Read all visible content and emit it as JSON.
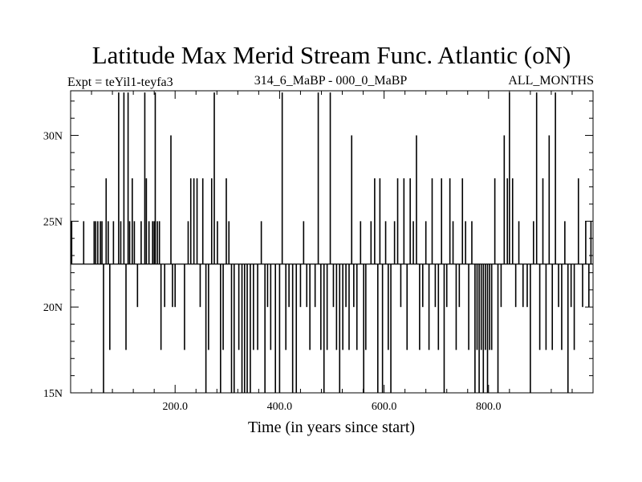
{
  "chart_data": {
    "type": "line",
    "title": "Latitude Max Merid Stream Func. Atlantic (oN)",
    "subtitle_left": "Expt = teYil1-teyfa3",
    "subtitle_center": "314_6_MaBP - 000_0_MaBP",
    "subtitle_right": "ALL_MONTHS",
    "xlabel": "Time (in years since start)",
    "ylabel": "",
    "xlim": [
      0,
      1000
    ],
    "ylim": [
      15,
      32.6
    ],
    "baseline": 22.5,
    "x_ticks": [
      {
        "value": 200,
        "label": "200.0"
      },
      {
        "value": 400,
        "label": "400.0"
      },
      {
        "value": 600,
        "label": "600.0"
      },
      {
        "value": 800,
        "label": "800.0"
      }
    ],
    "y_ticks": [
      {
        "value": 15,
        "label": "15N"
      },
      {
        "value": 20,
        "label": "20N"
      },
      {
        "value": 25,
        "label": "25N"
      },
      {
        "value": 30,
        "label": "30N"
      }
    ],
    "x_minor_step": 40,
    "y_minor_step": 1,
    "series": [
      {
        "spikes": [
          [
            2,
            25
          ],
          [
            25,
            25
          ],
          [
            45,
            25
          ],
          [
            48,
            25
          ],
          [
            52,
            25
          ],
          [
            57,
            25
          ],
          [
            60,
            25
          ],
          [
            63,
            15
          ],
          [
            68,
            27.5
          ],
          [
            72,
            25
          ],
          [
            75,
            17.5
          ],
          [
            82,
            25
          ],
          [
            92,
            32.5
          ],
          [
            96,
            25
          ],
          [
            99,
            22.5
          ],
          [
            102,
            32.5
          ],
          [
            106,
            17.5
          ],
          [
            110,
            32.5
          ],
          [
            113,
            25
          ],
          [
            118,
            27.5
          ],
          [
            122,
            25
          ],
          [
            128,
            20
          ],
          [
            135,
            25
          ],
          [
            142,
            32.5
          ],
          [
            145,
            27.5
          ],
          [
            150,
            25
          ],
          [
            157,
            25
          ],
          [
            160,
            25
          ],
          [
            162,
            32.5
          ],
          [
            166,
            25
          ],
          [
            170,
            25
          ],
          [
            173,
            17.5
          ],
          [
            180,
            20
          ],
          [
            188,
            22.5
          ],
          [
            192,
            30
          ],
          [
            195,
            20
          ],
          [
            200,
            20
          ],
          [
            205,
            22.5
          ],
          [
            218,
            17.5
          ],
          [
            225,
            25
          ],
          [
            230,
            27.5
          ],
          [
            236,
            27.5
          ],
          [
            242,
            27.5
          ],
          [
            248,
            20
          ],
          [
            253,
            27.5
          ],
          [
            259,
            15
          ],
          [
            264,
            17.5
          ],
          [
            270,
            27.5
          ],
          [
            275,
            32.5
          ],
          [
            281,
            25
          ],
          [
            287,
            15
          ],
          [
            292,
            17.5
          ],
          [
            298,
            27.5
          ],
          [
            303,
            25
          ],
          [
            308,
            15
          ],
          [
            313,
            15
          ],
          [
            318,
            22.5
          ],
          [
            322,
            17.5
          ],
          [
            328,
            15
          ],
          [
            333,
            15
          ],
          [
            338,
            15
          ],
          [
            344,
            15
          ],
          [
            350,
            17.5
          ],
          [
            358,
            17.5
          ],
          [
            365,
            25
          ],
          [
            372,
            15
          ],
          [
            377,
            20
          ],
          [
            383,
            17.5
          ],
          [
            392,
            15
          ],
          [
            400,
            15
          ],
          [
            405,
            32.5
          ],
          [
            412,
            17.5
          ],
          [
            418,
            20
          ],
          [
            425,
            15
          ],
          [
            432,
            15
          ],
          [
            440,
            20
          ],
          [
            446,
            25
          ],
          [
            452,
            20
          ],
          [
            458,
            17.5
          ],
          [
            463,
            22.5
          ],
          [
            468,
            20
          ],
          [
            474,
            32.5
          ],
          [
            479,
            17.5
          ],
          [
            485,
            15
          ],
          [
            491,
            17.5
          ],
          [
            497,
            32.5
          ],
          [
            503,
            20
          ],
          [
            509,
            17.5
          ],
          [
            515,
            15
          ],
          [
            521,
            17.5
          ],
          [
            527,
            20
          ],
          [
            533,
            17.5
          ],
          [
            538,
            30
          ],
          [
            542,
            20
          ],
          [
            548,
            17.5
          ],
          [
            555,
            25
          ],
          [
            561,
            15
          ],
          [
            565,
            17.5
          ],
          [
            570,
            22.5
          ],
          [
            575,
            25
          ],
          [
            582,
            27.5
          ],
          [
            588,
            15
          ],
          [
            592,
            27.5
          ],
          [
            597,
            15
          ],
          [
            603,
            25
          ],
          [
            608,
            17.5
          ],
          [
            613,
            15
          ],
          [
            620,
            25
          ],
          [
            626,
            27.5
          ],
          [
            632,
            20
          ],
          [
            638,
            27.5
          ],
          [
            644,
            17.5
          ],
          [
            650,
            27.5
          ],
          [
            656,
            25
          ],
          [
            662,
            30
          ],
          [
            668,
            17.5
          ],
          [
            674,
            20
          ],
          [
            680,
            25
          ],
          [
            686,
            17.5
          ],
          [
            692,
            27.5
          ],
          [
            698,
            20
          ],
          [
            704,
            17.5
          ],
          [
            710,
            27.5
          ],
          [
            715,
            15
          ],
          [
            720,
            20
          ],
          [
            726,
            27.5
          ],
          [
            732,
            25
          ],
          [
            738,
            17.5
          ],
          [
            744,
            20
          ],
          [
            750,
            27.5
          ],
          [
            756,
            25
          ],
          [
            762,
            17.5
          ],
          [
            768,
            25
          ],
          [
            774,
            15
          ],
          [
            778,
            17.5
          ],
          [
            782,
            15
          ],
          [
            786,
            17.5
          ],
          [
            790,
            15
          ],
          [
            794,
            17.5
          ],
          [
            798,
            15
          ],
          [
            802,
            17.5
          ],
          [
            806,
            17.5
          ],
          [
            812,
            27.5
          ],
          [
            818,
            15
          ],
          [
            824,
            20
          ],
          [
            830,
            30
          ],
          [
            836,
            27.5
          ],
          [
            840,
            32.5
          ],
          [
            846,
            27.5
          ],
          [
            852,
            20
          ],
          [
            858,
            25
          ],
          [
            866,
            20
          ],
          [
            874,
            20
          ],
          [
            880,
            15
          ],
          [
            886,
            25
          ],
          [
            892,
            32.5
          ],
          [
            898,
            17.5
          ],
          [
            904,
            27.5
          ],
          [
            910,
            17.5
          ],
          [
            916,
            30
          ],
          [
            922,
            17.5
          ],
          [
            928,
            32.5
          ],
          [
            934,
            20
          ],
          [
            940,
            17.5
          ],
          [
            946,
            25
          ],
          [
            952,
            15
          ],
          [
            958,
            20
          ],
          [
            964,
            17.5
          ],
          [
            972,
            27.5
          ],
          [
            980,
            20
          ],
          [
            986,
            25
          ],
          [
            992,
            20
          ],
          [
            996,
            25
          ]
        ]
      }
    ]
  }
}
